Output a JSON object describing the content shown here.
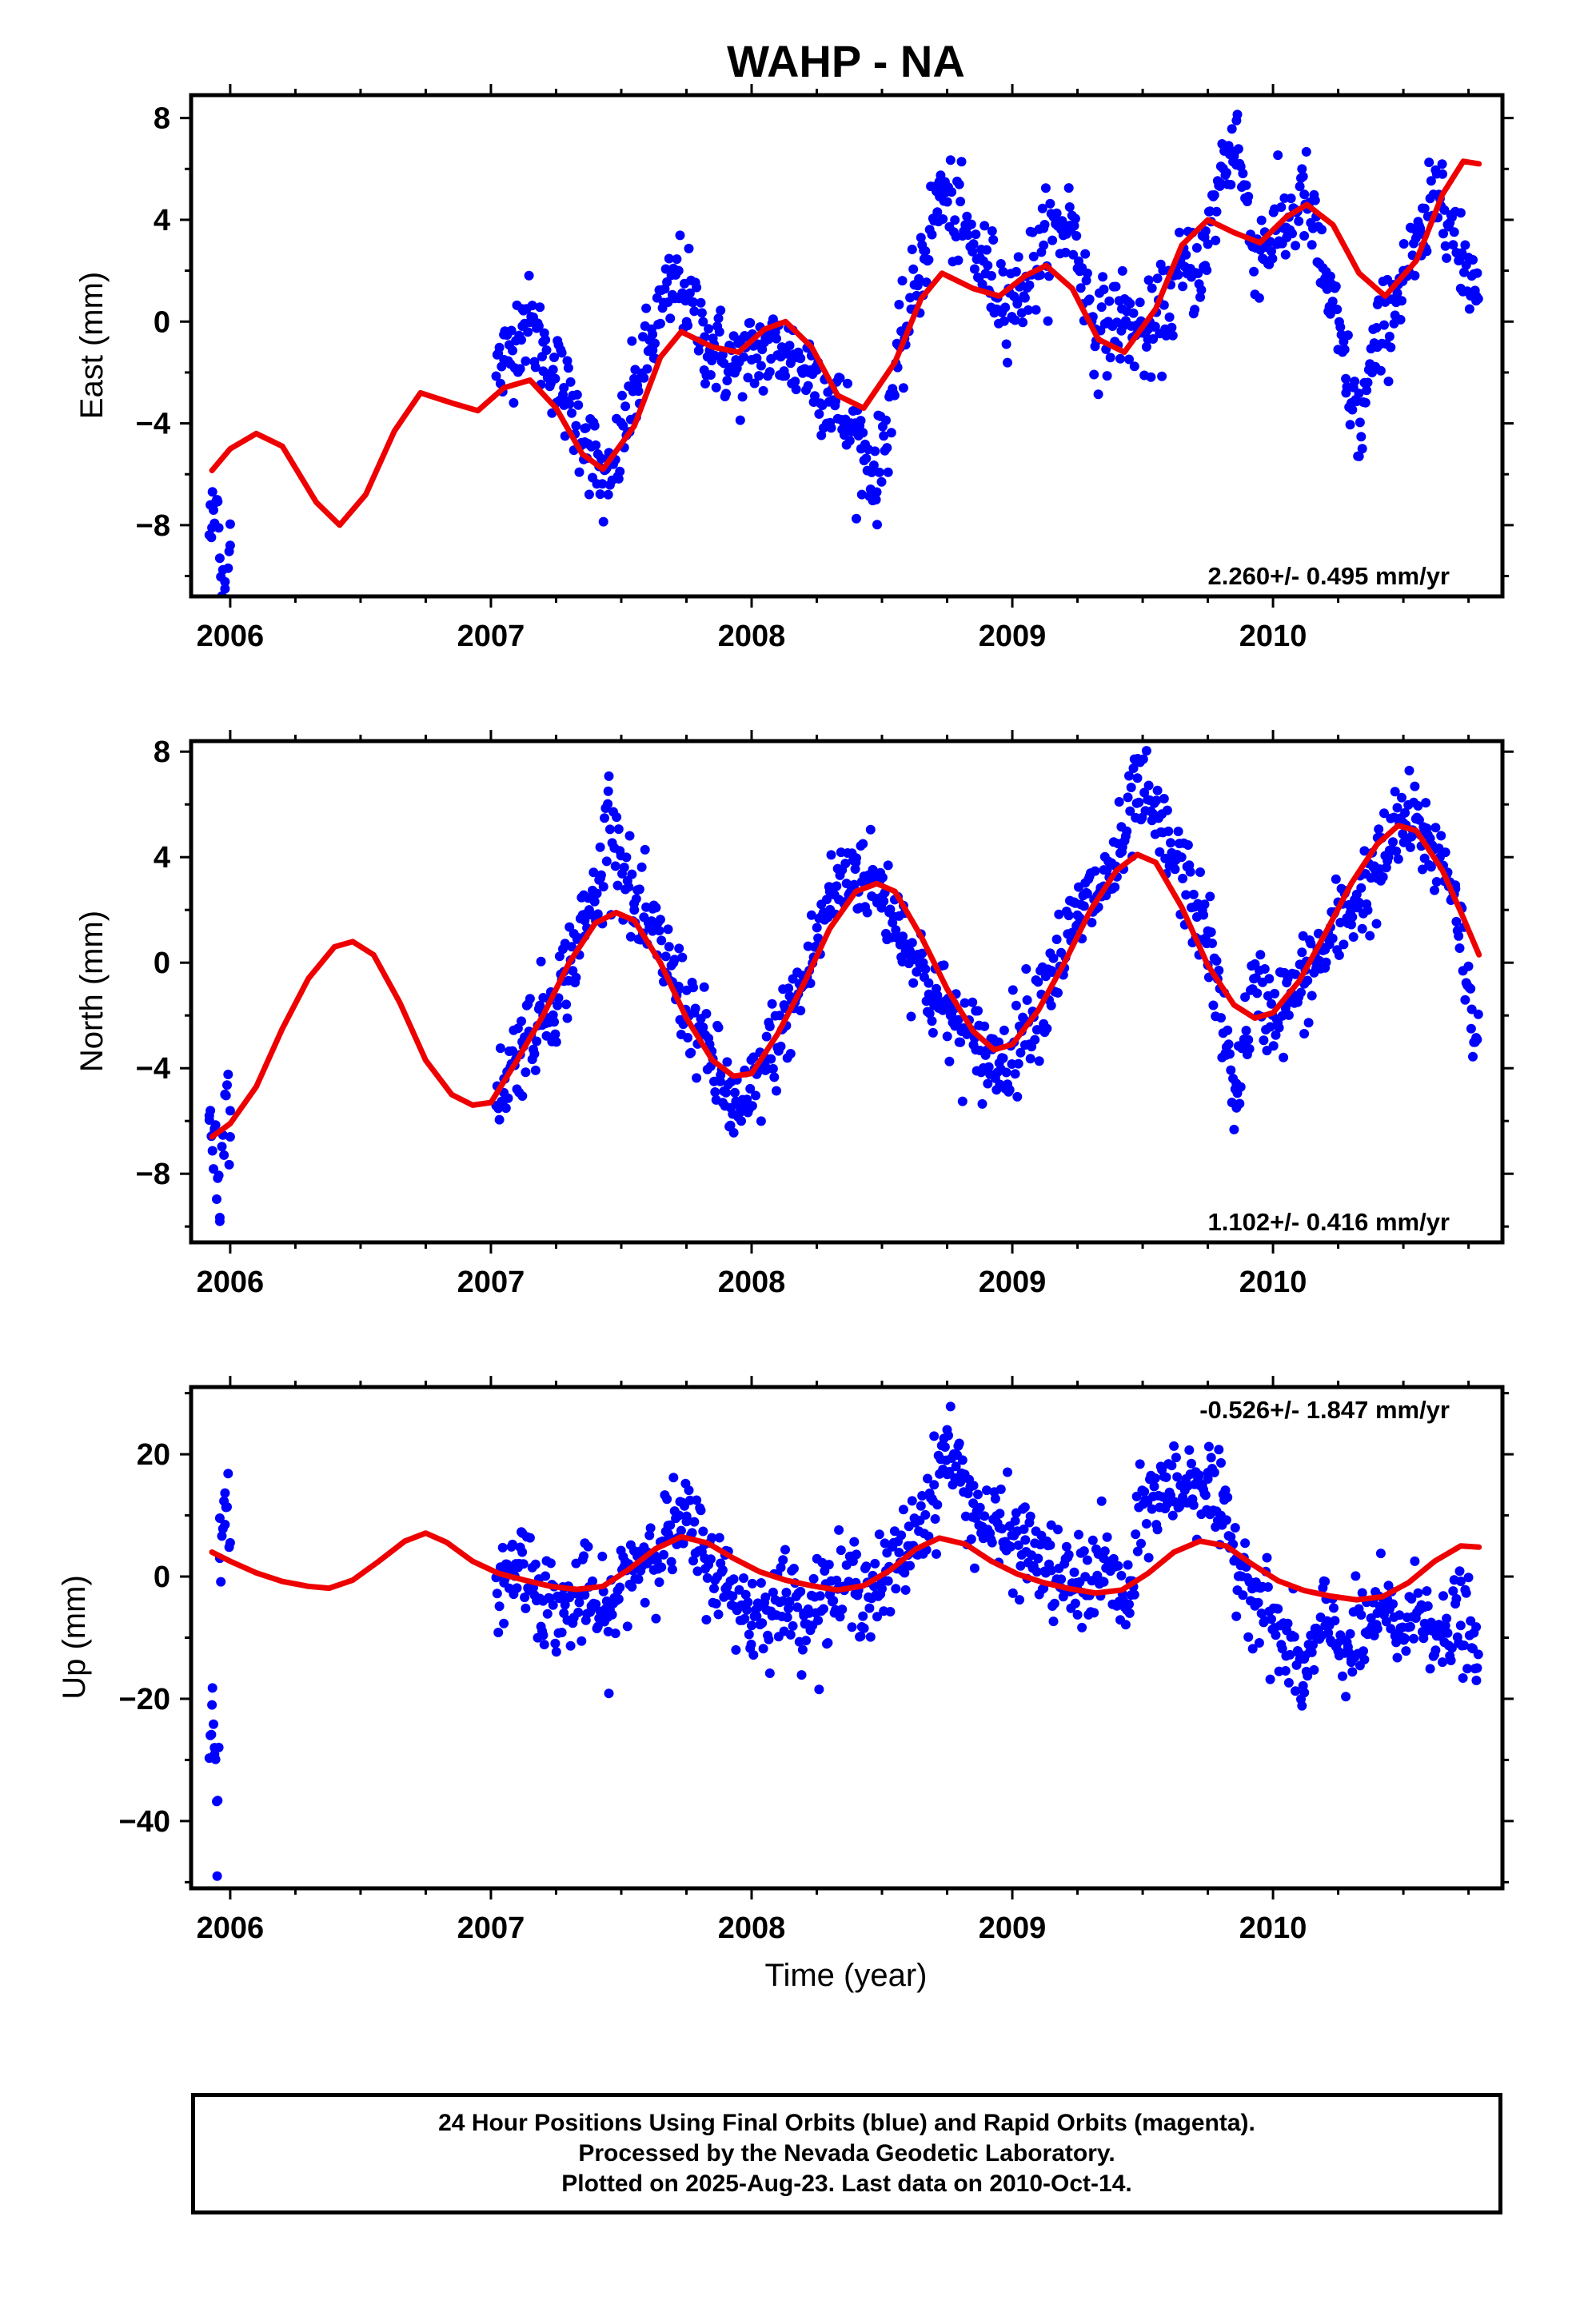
{
  "title": "WAHP - NA",
  "xlabel": "Time (year)",
  "caption": [
    "24 Hour Positions Using Final Orbits (blue) and Rapid Orbits (magenta).",
    "Processed by the Nevada Geodetic Laboratory.",
    "Plotted on 2025-Aug-23. Last data on 2010-Oct-14."
  ],
  "colors": {
    "data": "#0000ff",
    "model": "#ee0000",
    "frame": "#000000"
  },
  "chart_data": [
    {
      "type": "scatter",
      "component": "east",
      "ylabel": "East (mm)",
      "xlim": [
        2005.85,
        2010.88
      ],
      "ylim": [
        -10.8,
        8.9
      ],
      "yticks": [
        -8,
        -4,
        0,
        4,
        8
      ],
      "xticks": [
        2006,
        2007,
        2008,
        2009,
        2010
      ],
      "rate_label": "2.260+/- 0.495 mm/yr",
      "rate_position": "bottom-right",
      "observations": [
        [
          2005.93,
          -8.1
        ],
        [
          2005.95,
          -7.0
        ],
        [
          2005.96,
          -9.3
        ],
        [
          2005.98,
          -10.5
        ],
        [
          2006.0,
          -8.8
        ],
        [
          2007.05,
          -1.5
        ],
        [
          2007.12,
          0.5
        ],
        [
          2007.2,
          -0.8
        ],
        [
          2007.28,
          -2.6
        ],
        [
          2007.36,
          -4.2
        ],
        [
          2007.45,
          -6.8
        ],
        [
          2007.55,
          -2.5
        ],
        [
          2007.62,
          -0.5
        ],
        [
          2007.72,
          2.0
        ],
        [
          2007.82,
          -0.6
        ],
        [
          2007.92,
          -1.8
        ],
        [
          2008.0,
          -1.5
        ],
        [
          2008.15,
          -1.6
        ],
        [
          2008.22,
          -2.0
        ],
        [
          2008.32,
          -3.3
        ],
        [
          2008.42,
          -5.0
        ],
        [
          2008.48,
          -6.7
        ],
        [
          2008.56,
          -1.8
        ],
        [
          2008.66,
          2.8
        ],
        [
          2008.72,
          5.5
        ],
        [
          2008.82,
          3.8
        ],
        [
          2008.92,
          1.8
        ],
        [
          2009.02,
          0.8
        ],
        [
          2009.12,
          3.0
        ],
        [
          2009.22,
          4.5
        ],
        [
          2009.32,
          -0.3
        ],
        [
          2009.42,
          0.5
        ],
        [
          2009.52,
          -0.7
        ],
        [
          2009.74,
          2.2
        ],
        [
          2009.8,
          6.1
        ],
        [
          2009.86,
          7.9
        ],
        [
          2009.92,
          3.0
        ],
        [
          2010.05,
          3.7
        ],
        [
          2010.12,
          5.0
        ],
        [
          2010.22,
          0.3
        ],
        [
          2010.28,
          -2.8
        ],
        [
          2010.33,
          -5.3
        ],
        [
          2010.4,
          -1.0
        ],
        [
          2010.5,
          2.0
        ],
        [
          2010.58,
          3.4
        ],
        [
          2010.65,
          5.8
        ],
        [
          2010.72,
          1.3
        ],
        [
          2010.78,
          1.0
        ]
      ],
      "model": [
        [
          2005.93,
          -5.85
        ],
        [
          2006.0,
          -5.0
        ],
        [
          2006.1,
          -4.4
        ],
        [
          2006.2,
          -4.9
        ],
        [
          2006.33,
          -7.1
        ],
        [
          2006.42,
          -8.0
        ],
        [
          2006.52,
          -6.8
        ],
        [
          2006.63,
          -4.3
        ],
        [
          2006.73,
          -2.8
        ],
        [
          2006.85,
          -3.2
        ],
        [
          2006.95,
          -3.5
        ],
        [
          2007.05,
          -2.6
        ],
        [
          2007.15,
          -2.3
        ],
        [
          2007.25,
          -3.4
        ],
        [
          2007.35,
          -5.2
        ],
        [
          2007.43,
          -5.8
        ],
        [
          2007.55,
          -4.1
        ],
        [
          2007.65,
          -1.4
        ],
        [
          2007.73,
          -0.4
        ],
        [
          2007.85,
          -1.0
        ],
        [
          2007.95,
          -1.2
        ],
        [
          2008.05,
          -0.3
        ],
        [
          2008.13,
          0.0
        ],
        [
          2008.23,
          -1.0
        ],
        [
          2008.33,
          -2.9
        ],
        [
          2008.43,
          -3.4
        ],
        [
          2008.55,
          -1.6
        ],
        [
          2008.65,
          0.9
        ],
        [
          2008.73,
          1.9
        ],
        [
          2008.85,
          1.3
        ],
        [
          2008.95,
          1.0
        ],
        [
          2009.05,
          1.8
        ],
        [
          2009.13,
          2.2
        ],
        [
          2009.23,
          1.3
        ],
        [
          2009.33,
          -0.7
        ],
        [
          2009.43,
          -1.2
        ],
        [
          2009.55,
          0.5
        ],
        [
          2009.65,
          3.0
        ],
        [
          2009.75,
          4.0
        ],
        [
          2009.85,
          3.5
        ],
        [
          2009.95,
          3.1
        ],
        [
          2010.05,
          4.1
        ],
        [
          2010.13,
          4.6
        ],
        [
          2010.23,
          3.8
        ],
        [
          2010.33,
          1.9
        ],
        [
          2010.43,
          1.0
        ],
        [
          2010.55,
          2.4
        ],
        [
          2010.65,
          5.0
        ],
        [
          2010.73,
          6.3
        ],
        [
          2010.79,
          6.2
        ]
      ]
    },
    {
      "type": "scatter",
      "component": "north",
      "ylabel": "North (mm)",
      "xlim": [
        2005.85,
        2010.88
      ],
      "ylim": [
        -10.6,
        8.4
      ],
      "yticks": [
        -8,
        -4,
        0,
        4,
        8
      ],
      "xticks": [
        2006,
        2007,
        2008,
        2009,
        2010
      ],
      "rate_label": "1.102+/- 0.416 mm/yr",
      "rate_position": "bottom-right",
      "observations": [
        [
          2005.92,
          -5.8
        ],
        [
          2005.94,
          -6.4
        ],
        [
          2005.96,
          -9.8
        ],
        [
          2005.98,
          -5.0
        ],
        [
          2006.0,
          -6.6
        ],
        [
          2007.05,
          -4.4
        ],
        [
          2007.12,
          -3.0
        ],
        [
          2007.2,
          -2.0
        ],
        [
          2007.28,
          -0.7
        ],
        [
          2007.36,
          1.6
        ],
        [
          2007.42,
          3.2
        ],
        [
          2007.45,
          6.5
        ],
        [
          2007.55,
          2.0
        ],
        [
          2007.62,
          1.2
        ],
        [
          2007.72,
          -0.9
        ],
        [
          2007.8,
          -2.5
        ],
        [
          2007.88,
          -4.5
        ],
        [
          2007.92,
          -5.5
        ],
        [
          2007.96,
          -6.0
        ],
        [
          2008.05,
          -3.8
        ],
        [
          2008.12,
          -2.5
        ],
        [
          2008.2,
          -0.7
        ],
        [
          2008.3,
          2.7
        ],
        [
          2008.4,
          3.8
        ],
        [
          2008.5,
          2.5
        ],
        [
          2008.58,
          1.0
        ],
        [
          2008.68,
          -1.2
        ],
        [
          2008.78,
          -2.4
        ],
        [
          2008.86,
          -3.3
        ],
        [
          2008.95,
          -3.8
        ],
        [
          2009.05,
          -2.2
        ],
        [
          2009.15,
          -0.3
        ],
        [
          2009.25,
          1.8
        ],
        [
          2009.35,
          2.9
        ],
        [
          2009.42,
          4.2
        ],
        [
          2009.48,
          7.0
        ],
        [
          2009.55,
          5.5
        ],
        [
          2009.75,
          1.2
        ],
        [
          2009.82,
          -3.5
        ],
        [
          2009.86,
          -5.5
        ],
        [
          2009.92,
          -1.0
        ],
        [
          2010.05,
          -1.6
        ],
        [
          2010.12,
          -0.8
        ],
        [
          2010.2,
          0.5
        ],
        [
          2010.3,
          2.0
        ],
        [
          2010.4,
          3.2
        ],
        [
          2010.5,
          5.3
        ],
        [
          2010.6,
          4.5
        ],
        [
          2010.7,
          2.8
        ],
        [
          2010.76,
          -2.5
        ]
      ],
      "model": [
        [
          2005.93,
          -6.6
        ],
        [
          2006.0,
          -6.1
        ],
        [
          2006.1,
          -4.7
        ],
        [
          2006.2,
          -2.5
        ],
        [
          2006.3,
          -0.6
        ],
        [
          2006.4,
          0.6
        ],
        [
          2006.47,
          0.8
        ],
        [
          2006.55,
          0.3
        ],
        [
          2006.65,
          -1.5
        ],
        [
          2006.75,
          -3.7
        ],
        [
          2006.85,
          -5.0
        ],
        [
          2006.93,
          -5.4
        ],
        [
          2007.0,
          -5.3
        ],
        [
          2007.1,
          -3.7
        ],
        [
          2007.2,
          -2.0
        ],
        [
          2007.3,
          0.0
        ],
        [
          2007.4,
          1.5
        ],
        [
          2007.48,
          1.9
        ],
        [
          2007.55,
          1.6
        ],
        [
          2007.65,
          0.0
        ],
        [
          2007.75,
          -2.1
        ],
        [
          2007.85,
          -3.7
        ],
        [
          2007.93,
          -4.3
        ],
        [
          2008.0,
          -4.2
        ],
        [
          2008.1,
          -2.7
        ],
        [
          2008.2,
          -0.8
        ],
        [
          2008.3,
          1.3
        ],
        [
          2008.4,
          2.7
        ],
        [
          2008.48,
          3.0
        ],
        [
          2008.55,
          2.7
        ],
        [
          2008.65,
          1.0
        ],
        [
          2008.75,
          -1.0
        ],
        [
          2008.85,
          -2.6
        ],
        [
          2008.93,
          -3.3
        ],
        [
          2009.0,
          -3.1
        ],
        [
          2009.1,
          -1.8
        ],
        [
          2009.2,
          0.0
        ],
        [
          2009.3,
          2.0
        ],
        [
          2009.4,
          3.5
        ],
        [
          2009.48,
          4.1
        ],
        [
          2009.55,
          3.8
        ],
        [
          2009.65,
          2.1
        ],
        [
          2009.75,
          -0.1
        ],
        [
          2009.85,
          -1.6
        ],
        [
          2009.93,
          -2.1
        ],
        [
          2010.0,
          -1.9
        ],
        [
          2010.1,
          -0.7
        ],
        [
          2010.2,
          1.1
        ],
        [
          2010.3,
          3.0
        ],
        [
          2010.4,
          4.5
        ],
        [
          2010.48,
          5.2
        ],
        [
          2010.55,
          5.0
        ],
        [
          2010.65,
          3.5
        ],
        [
          2010.73,
          1.7
        ],
        [
          2010.79,
          0.3
        ]
      ]
    },
    {
      "type": "scatter",
      "component": "up",
      "ylabel": "Up (mm)",
      "xlim": [
        2005.85,
        2010.88
      ],
      "ylim": [
        -51,
        31
      ],
      "yticks": [
        -40,
        -20,
        0,
        20
      ],
      "xticks": [
        2006,
        2007,
        2008,
        2009,
        2010
      ],
      "rate_label": "-0.526+/- 1.847 mm/yr",
      "rate_position": "top-right",
      "observations": [
        [
          2005.93,
          -21.0
        ],
        [
          2005.94,
          -28.0
        ],
        [
          2005.95,
          -49.0
        ],
        [
          2005.96,
          3.0
        ],
        [
          2005.98,
          8.5
        ],
        [
          2007.05,
          -1.0
        ],
        [
          2007.12,
          4.0
        ],
        [
          2007.2,
          -4.0
        ],
        [
          2007.28,
          -6.0
        ],
        [
          2007.36,
          -3.0
        ],
        [
          2007.45,
          -9.0
        ],
        [
          2007.52,
          1.0
        ],
        [
          2007.6,
          4.0
        ],
        [
          2007.68,
          7.0
        ],
        [
          2007.75,
          9.0
        ],
        [
          2007.82,
          3.0
        ],
        [
          2007.9,
          -2.0
        ],
        [
          2008.0,
          -8.0
        ],
        [
          2008.12,
          -4.0
        ],
        [
          2008.2,
          -6.0
        ],
        [
          2008.3,
          -3.0
        ],
        [
          2008.4,
          -1.0
        ],
        [
          2008.5,
          -2.0
        ],
        [
          2008.6,
          5.0
        ],
        [
          2008.7,
          15.0
        ],
        [
          2008.75,
          24.0
        ],
        [
          2008.85,
          12.0
        ],
        [
          2008.95,
          8.0
        ],
        [
          2009.05,
          6.0
        ],
        [
          2009.15,
          1.0
        ],
        [
          2009.25,
          -2.0
        ],
        [
          2009.35,
          3.0
        ],
        [
          2009.45,
          -6.0
        ],
        [
          2009.5,
          14.0
        ],
        [
          2009.75,
          17.0
        ],
        [
          2009.8,
          10.0
        ],
        [
          2009.86,
          3.0
        ],
        [
          2009.92,
          -2.0
        ],
        [
          2010.05,
          -13.0
        ],
        [
          2010.12,
          -19.0
        ],
        [
          2010.2,
          -8.0
        ],
        [
          2010.3,
          -14.0
        ],
        [
          2010.4,
          -6.0
        ],
        [
          2010.5,
          -10.0
        ],
        [
          2010.58,
          -5.0
        ],
        [
          2010.65,
          -14.0
        ],
        [
          2010.72,
          -8.0
        ],
        [
          2010.78,
          -17.0
        ]
      ],
      "model": [
        [
          2005.93,
          4.0
        ],
        [
          2006.0,
          2.5
        ],
        [
          2006.1,
          0.6
        ],
        [
          2006.2,
          -0.8
        ],
        [
          2006.3,
          -1.6
        ],
        [
          2006.38,
          -1.9
        ],
        [
          2006.47,
          -0.6
        ],
        [
          2006.57,
          2.5
        ],
        [
          2006.67,
          5.8
        ],
        [
          2006.75,
          7.1
        ],
        [
          2006.83,
          5.6
        ],
        [
          2006.93,
          2.5
        ],
        [
          2007.03,
          0.5
        ],
        [
          2007.13,
          -0.6
        ],
        [
          2007.23,
          -1.6
        ],
        [
          2007.33,
          -2.1
        ],
        [
          2007.43,
          -1.6
        ],
        [
          2007.53,
          1.2
        ],
        [
          2007.63,
          4.5
        ],
        [
          2007.73,
          6.5
        ],
        [
          2007.83,
          5.5
        ],
        [
          2007.93,
          3.0
        ],
        [
          2008.03,
          0.8
        ],
        [
          2008.13,
          -0.6
        ],
        [
          2008.23,
          -1.5
        ],
        [
          2008.33,
          -2.2
        ],
        [
          2008.43,
          -1.5
        ],
        [
          2008.53,
          1.0
        ],
        [
          2008.63,
          4.5
        ],
        [
          2008.72,
          6.3
        ],
        [
          2008.82,
          5.3
        ],
        [
          2008.92,
          2.5
        ],
        [
          2009.02,
          0.4
        ],
        [
          2009.12,
          -1.0
        ],
        [
          2009.22,
          -2.0
        ],
        [
          2009.32,
          -2.7
        ],
        [
          2009.42,
          -2.2
        ],
        [
          2009.52,
          0.5
        ],
        [
          2009.62,
          4.0
        ],
        [
          2009.72,
          5.8
        ],
        [
          2009.82,
          5.0
        ],
        [
          2009.92,
          2.0
        ],
        [
          2010.02,
          -0.7
        ],
        [
          2010.12,
          -2.3
        ],
        [
          2010.22,
          -3.2
        ],
        [
          2010.32,
          -3.8
        ],
        [
          2010.42,
          -3.3
        ],
        [
          2010.52,
          -1.0
        ],
        [
          2010.62,
          2.5
        ],
        [
          2010.72,
          5.0
        ],
        [
          2010.79,
          4.8
        ]
      ]
    }
  ]
}
